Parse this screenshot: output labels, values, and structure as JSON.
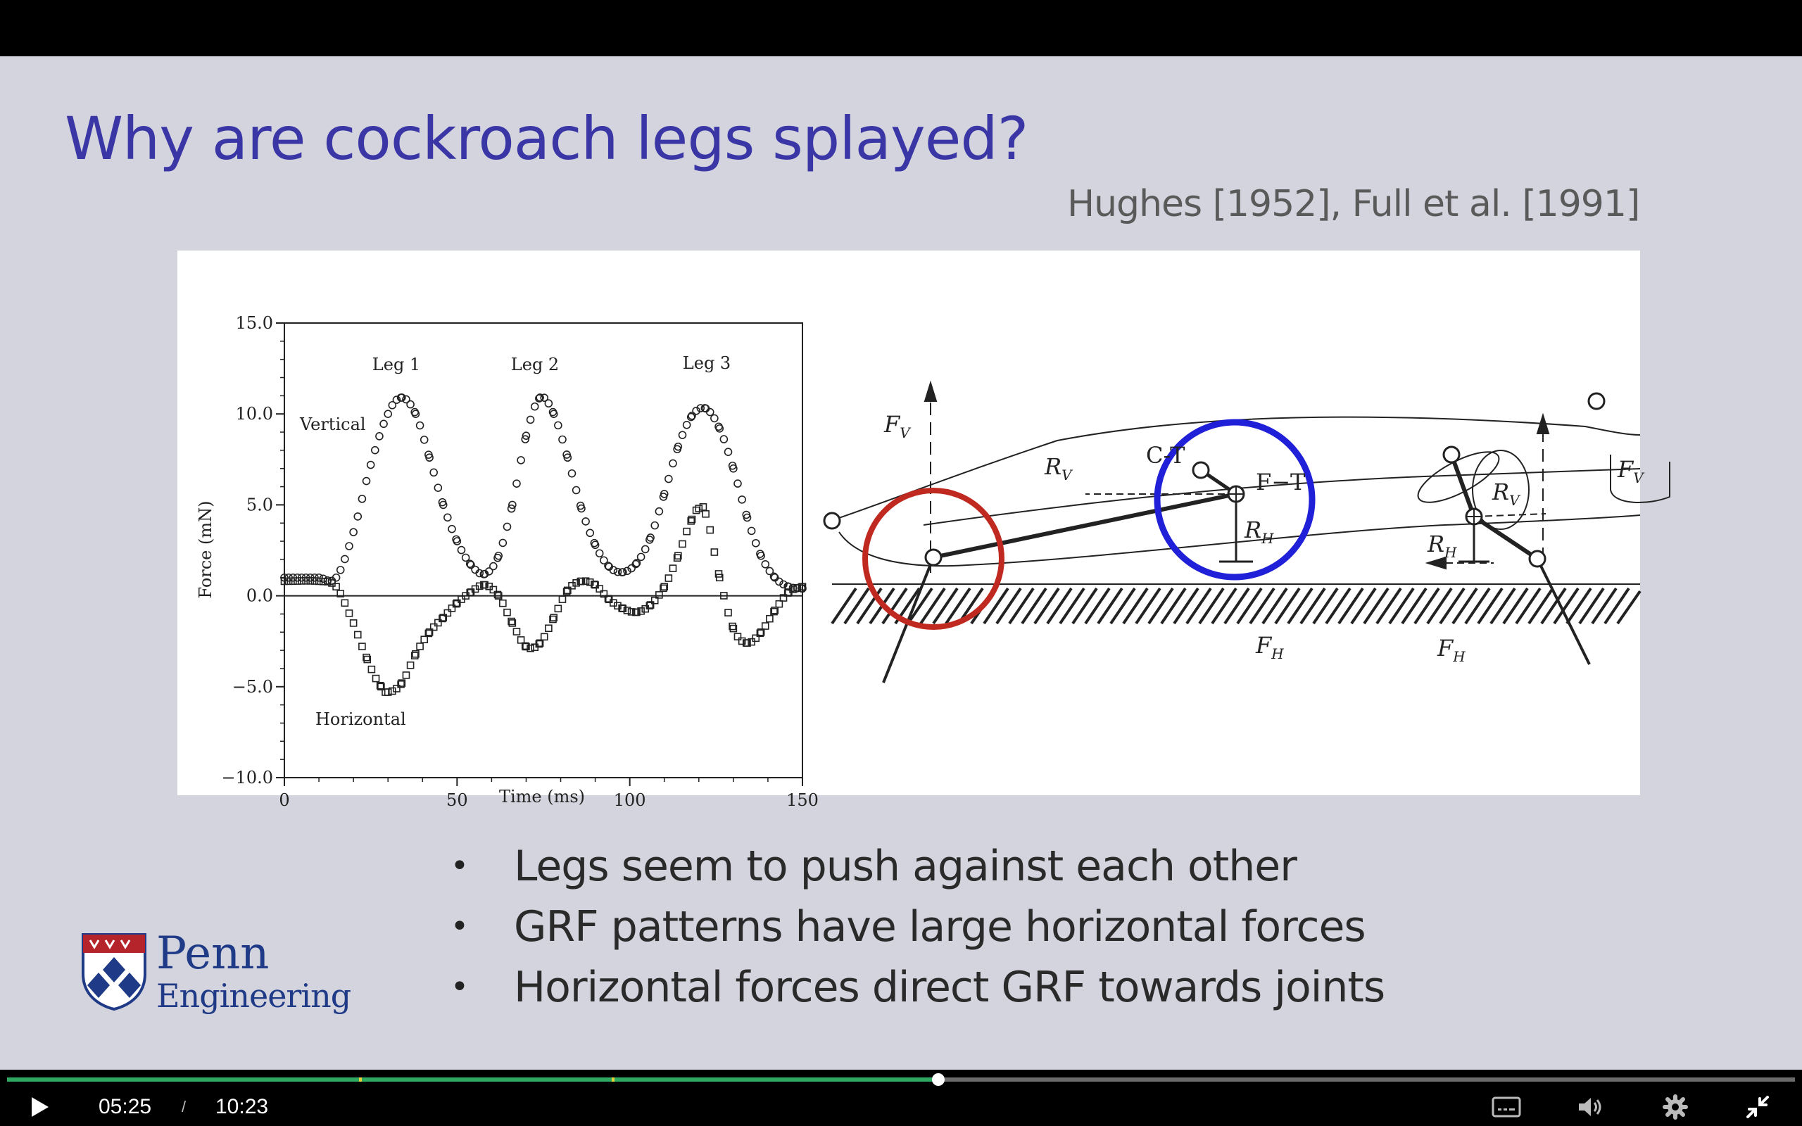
{
  "slide": {
    "title": "Why are cockroach legs splayed?",
    "citation": "Hughes [1952], Full et al. [1991]",
    "bullets": [
      "Legs seem to push against each other",
      "GRF patterns have large horizontal forces",
      "Horizontal forces direct GRF towards joints"
    ],
    "logo": {
      "line1": "Penn",
      "line2": "Engineering"
    }
  },
  "chart_data": {
    "type": "scatter",
    "xlabel": "Time (ms)",
    "ylabel": "Force (mN)",
    "xlim": [
      0,
      150
    ],
    "ylim": [
      -10,
      15
    ],
    "xticks": [
      0,
      50,
      100,
      150
    ],
    "yticks": [
      15,
      10,
      5,
      0,
      -5,
      -10
    ],
    "ytick_labels": [
      "15.0",
      "10.0",
      "5.0",
      "0.0",
      "−5.0",
      "−10.0"
    ],
    "annotations": [
      "Leg 1",
      "Leg 2",
      "Leg 3",
      "Vertical",
      "Horizontal"
    ],
    "series": [
      {
        "name": "Vertical",
        "marker": "circle",
        "x": [
          0,
          10,
          15,
          20,
          25,
          30,
          34,
          38,
          42,
          46,
          50,
          54,
          58,
          62,
          66,
          70,
          74,
          78,
          82,
          86,
          90,
          94,
          98,
          102,
          106,
          110,
          114,
          118,
          122,
          126,
          130,
          134,
          138,
          142,
          146,
          150
        ],
        "y": [
          1.0,
          1.0,
          1.0,
          3.5,
          7.2,
          10.0,
          10.9,
          10.0,
          7.6,
          5.0,
          3.0,
          1.7,
          1.2,
          2.2,
          5.0,
          8.8,
          10.9,
          10.0,
          7.6,
          4.8,
          2.8,
          1.6,
          1.3,
          1.8,
          3.2,
          5.6,
          8.2,
          9.9,
          10.3,
          9.2,
          7.0,
          4.3,
          2.2,
          1.0,
          0.5,
          0.4
        ]
      },
      {
        "name": "Horizontal",
        "marker": "square",
        "x": [
          0,
          10,
          15,
          20,
          24,
          28,
          30,
          34,
          38,
          42,
          46,
          50,
          54,
          58,
          62,
          66,
          70,
          74,
          78,
          82,
          86,
          90,
          94,
          98,
          102,
          106,
          110,
          114,
          118,
          120,
          122,
          126,
          130,
          134,
          138,
          142,
          146,
          150
        ],
        "y": [
          0.8,
          0.8,
          0.5,
          -1.5,
          -3.5,
          -5.0,
          -5.3,
          -4.8,
          -3.2,
          -2.0,
          -1.2,
          -0.4,
          0.2,
          0.6,
          0.0,
          -1.5,
          -2.8,
          -2.6,
          -1.2,
          0.3,
          0.8,
          0.6,
          -0.2,
          -0.7,
          -0.9,
          -0.5,
          0.5,
          2.2,
          4.2,
          4.8,
          4.5,
          1.0,
          -1.8,
          -2.6,
          -2.0,
          -0.8,
          0.2,
          0.5
        ]
      }
    ]
  },
  "diagram": {
    "labels": {
      "fv": "F",
      "fv_sub": "V",
      "rv": "R",
      "rv_sub": "V",
      "ct": "C-T",
      "ft": "F−T",
      "rh": "R",
      "rh_sub": "H",
      "fh": "F",
      "fh_sub": "H"
    },
    "highlight_colors": {
      "red_circle": "#c0291f",
      "blue_circle": "#2020d8"
    }
  },
  "player": {
    "current_time": "05:25",
    "separator": "/",
    "total_time": "10:23",
    "progress_fraction": 0.521,
    "chapter_marks": [
      0.197,
      0.338
    ],
    "colors": {
      "played": "#2fa861",
      "track": "#6b6b6b",
      "chapter": "#e4d33a"
    },
    "icons": [
      "play-icon",
      "captions-icon",
      "volume-icon",
      "settings-icon",
      "exit-fullscreen-icon"
    ]
  }
}
